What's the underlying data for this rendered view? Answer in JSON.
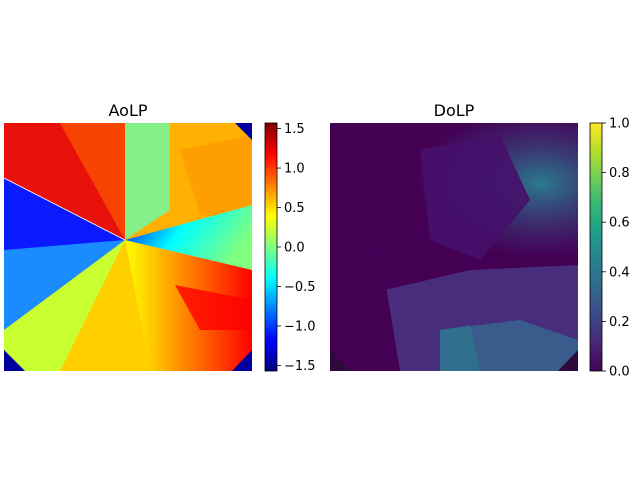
{
  "chart_data": [
    {
      "type": "heatmap",
      "title": "AoLP",
      "colormap": "jet",
      "colorbar": {
        "range": [
          -1.5708,
          1.5708
        ],
        "ticks": [
          1.5,
          1.0,
          0.5,
          0.0,
          -0.5,
          -1.0,
          -1.5
        ],
        "tick_labels": [
          "1.5",
          "1.0",
          "0.5",
          "0.0",
          "−0.5",
          "−1.0",
          "−1.5"
        ]
      },
      "axes_visible": false
    },
    {
      "type": "heatmap",
      "title": "DoLP",
      "colormap": "viridis",
      "colorbar": {
        "range": [
          0.0,
          1.0
        ],
        "ticks": [
          1.0,
          0.8,
          0.6,
          0.4,
          0.2,
          0.0
        ],
        "tick_labels": [
          "1.0",
          "0.8",
          "0.6",
          "0.4",
          "0.2",
          "0.0"
        ]
      },
      "axes_visible": false
    }
  ],
  "colors": {
    "jet": [
      "#00007f",
      "#0000ff",
      "#007fff",
      "#00ffff",
      "#7fff7f",
      "#ffff00",
      "#ff7f00",
      "#ff0000",
      "#7f0000"
    ],
    "viridis": [
      "#440154",
      "#482878",
      "#3e4989",
      "#31688e",
      "#26828e",
      "#1f9e89",
      "#35b779",
      "#6ece58",
      "#b5de2b",
      "#fde725"
    ]
  }
}
